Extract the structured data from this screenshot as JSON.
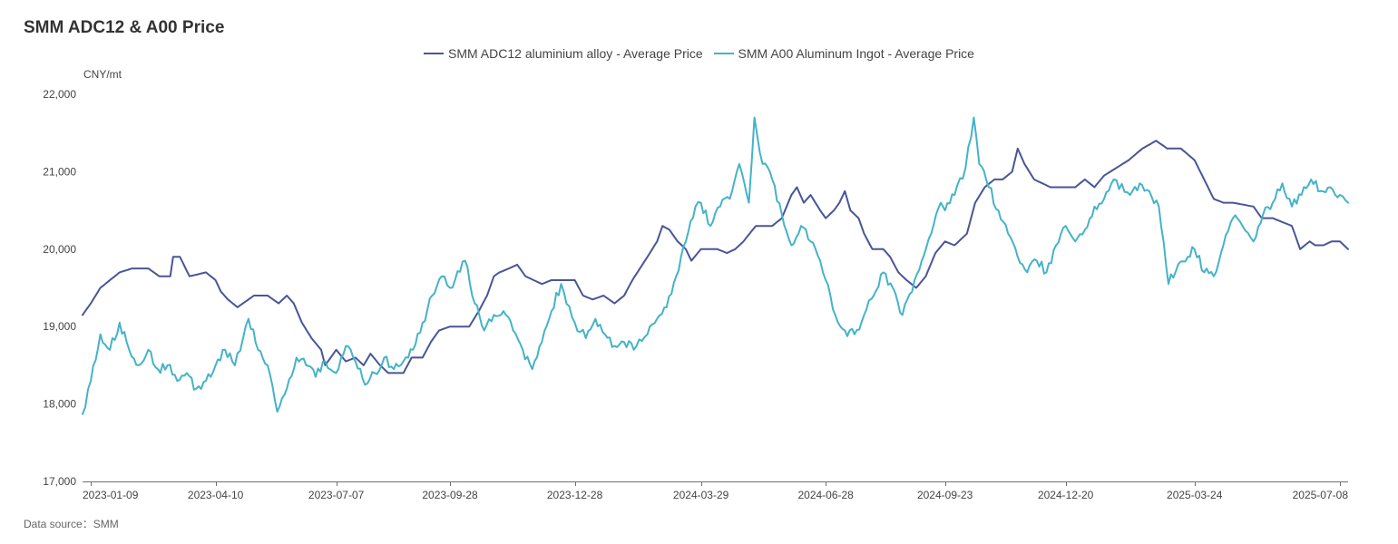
{
  "title": "SMM ADC12 & A00 Price",
  "unit": "CNY/mt",
  "source": "Data source：SMM",
  "chart_data": {
    "type": "line",
    "title": "SMM ADC12 & A00 Price",
    "ylabel": "CNY/mt",
    "ylim": [
      17000,
      22000
    ],
    "yticks": [
      "17,000",
      "18,000",
      "19,000",
      "20,000",
      "21,000",
      "22,000"
    ],
    "ytick_values": [
      17000,
      18000,
      19000,
      20000,
      21000,
      22000
    ],
    "xlim": [
      "2023-01-03",
      "2025-07-14"
    ],
    "xticks": [
      "2023-01-09",
      "2023-04-10",
      "2023-07-07",
      "2023-09-28",
      "2023-12-28",
      "2024-03-29",
      "2024-06-28",
      "2024-09-23",
      "2024-12-20",
      "2025-03-24",
      "2025-07-08"
    ],
    "grid": false,
    "legend": "top-center",
    "series": [
      {
        "name": "SMM ADC12 aluminium alloy - Average Price",
        "color": "#4a5597",
        "points": [
          [
            "2023-01-03",
            19150
          ],
          [
            "2023-01-09",
            19300
          ],
          [
            "2023-01-16",
            19500
          ],
          [
            "2023-01-30",
            19700
          ],
          [
            "2023-02-08",
            19750
          ],
          [
            "2023-02-20",
            19750
          ],
          [
            "2023-02-28",
            19650
          ],
          [
            "2023-03-08",
            19650
          ],
          [
            "2023-03-10",
            19900
          ],
          [
            "2023-03-15",
            19900
          ],
          [
            "2023-03-22",
            19650
          ],
          [
            "2023-04-03",
            19700
          ],
          [
            "2023-04-10",
            19600
          ],
          [
            "2023-04-14",
            19450
          ],
          [
            "2023-04-19",
            19350
          ],
          [
            "2023-04-26",
            19250
          ],
          [
            "2023-05-08",
            19400
          ],
          [
            "2023-05-18",
            19400
          ],
          [
            "2023-05-26",
            19300
          ],
          [
            "2023-06-01",
            19400
          ],
          [
            "2023-06-06",
            19300
          ],
          [
            "2023-06-12",
            19050
          ],
          [
            "2023-06-19",
            18850
          ],
          [
            "2023-06-26",
            18700
          ],
          [
            "2023-06-29",
            18500
          ],
          [
            "2023-07-03",
            18600
          ],
          [
            "2023-07-07",
            18700
          ],
          [
            "2023-07-14",
            18550
          ],
          [
            "2023-07-21",
            18600
          ],
          [
            "2023-07-27",
            18500
          ],
          [
            "2023-08-01",
            18650
          ],
          [
            "2023-08-08",
            18500
          ],
          [
            "2023-08-14",
            18400
          ],
          [
            "2023-08-25",
            18400
          ],
          [
            "2023-08-31",
            18600
          ],
          [
            "2023-09-08",
            18600
          ],
          [
            "2023-09-14",
            18800
          ],
          [
            "2023-09-20",
            18950
          ],
          [
            "2023-09-28",
            19000
          ],
          [
            "2023-10-12",
            19000
          ],
          [
            "2023-10-19",
            19200
          ],
          [
            "2023-10-25",
            19400
          ],
          [
            "2023-10-30",
            19650
          ],
          [
            "2023-11-03",
            19700
          ],
          [
            "2023-11-10",
            19750
          ],
          [
            "2023-11-16",
            19800
          ],
          [
            "2023-11-22",
            19650
          ],
          [
            "2023-11-28",
            19600
          ],
          [
            "2023-12-04",
            19550
          ],
          [
            "2023-12-11",
            19600
          ],
          [
            "2023-12-21",
            19600
          ],
          [
            "2023-12-28",
            19600
          ],
          [
            "2024-01-03",
            19400
          ],
          [
            "2024-01-10",
            19350
          ],
          [
            "2024-01-18",
            19400
          ],
          [
            "2024-01-26",
            19300
          ],
          [
            "2024-02-02",
            19400
          ],
          [
            "2024-02-08",
            19600
          ],
          [
            "2024-02-19",
            19900
          ],
          [
            "2024-02-26",
            20100
          ],
          [
            "2024-03-01",
            20300
          ],
          [
            "2024-03-06",
            20250
          ],
          [
            "2024-03-12",
            20100
          ],
          [
            "2024-03-18",
            20000
          ],
          [
            "2024-03-22",
            19850
          ],
          [
            "2024-03-29",
            20000
          ],
          [
            "2024-04-10",
            20000
          ],
          [
            "2024-04-17",
            19950
          ],
          [
            "2024-04-23",
            20000
          ],
          [
            "2024-04-29",
            20100
          ],
          [
            "2024-05-08",
            20300
          ],
          [
            "2024-05-20",
            20300
          ],
          [
            "2024-05-27",
            20400
          ],
          [
            "2024-06-03",
            20700
          ],
          [
            "2024-06-07",
            20800
          ],
          [
            "2024-06-12",
            20600
          ],
          [
            "2024-06-17",
            20700
          ],
          [
            "2024-06-24",
            20500
          ],
          [
            "2024-06-28",
            20400
          ],
          [
            "2024-07-04",
            20500
          ],
          [
            "2024-07-08",
            20600
          ],
          [
            "2024-07-12",
            20750
          ],
          [
            "2024-07-16",
            20500
          ],
          [
            "2024-07-22",
            20400
          ],
          [
            "2024-07-26",
            20200
          ],
          [
            "2024-08-01",
            20000
          ],
          [
            "2024-08-09",
            20000
          ],
          [
            "2024-08-14",
            19900
          ],
          [
            "2024-08-20",
            19700
          ],
          [
            "2024-08-26",
            19600
          ],
          [
            "2024-09-02",
            19500
          ],
          [
            "2024-09-09",
            19650
          ],
          [
            "2024-09-16",
            19950
          ],
          [
            "2024-09-23",
            20100
          ],
          [
            "2024-09-30",
            20050
          ],
          [
            "2024-10-09",
            20200
          ],
          [
            "2024-10-15",
            20600
          ],
          [
            "2024-10-22",
            20800
          ],
          [
            "2024-10-29",
            20900
          ],
          [
            "2024-11-04",
            20900
          ],
          [
            "2024-11-11",
            21000
          ],
          [
            "2024-11-15",
            21300
          ],
          [
            "2024-11-20",
            21100
          ],
          [
            "2024-11-27",
            20900
          ],
          [
            "2024-12-09",
            20800
          ],
          [
            "2024-12-16",
            20800
          ],
          [
            "2024-12-20",
            20800
          ],
          [
            "2024-12-27",
            20800
          ],
          [
            "2025-01-03",
            20900
          ],
          [
            "2025-01-10",
            20800
          ],
          [
            "2025-01-17",
            20950
          ],
          [
            "2025-02-04",
            21150
          ],
          [
            "2025-02-14",
            21300
          ],
          [
            "2025-02-24",
            21400
          ],
          [
            "2025-03-04",
            21300
          ],
          [
            "2025-03-14",
            21300
          ],
          [
            "2025-03-24",
            21150
          ],
          [
            "2025-03-31",
            20900
          ],
          [
            "2025-04-07",
            20650
          ],
          [
            "2025-04-14",
            20600
          ],
          [
            "2025-04-21",
            20600
          ],
          [
            "2025-05-06",
            20550
          ],
          [
            "2025-05-12",
            20400
          ],
          [
            "2025-05-20",
            20400
          ],
          [
            "2025-05-27",
            20350
          ],
          [
            "2025-06-03",
            20300
          ],
          [
            "2025-06-09",
            20000
          ],
          [
            "2025-06-16",
            20100
          ],
          [
            "2025-06-20",
            20050
          ],
          [
            "2025-06-26",
            20050
          ],
          [
            "2025-07-02",
            20100
          ],
          [
            "2025-07-08",
            20100
          ],
          [
            "2025-07-14",
            20000
          ]
        ]
      },
      {
        "name": "SMM A00 Aluminum Ingot - Average Price",
        "color": "#45b3c6",
        "points": [
          [
            "2023-01-03",
            17870
          ],
          [
            "2023-01-09",
            18300
          ],
          [
            "2023-01-16",
            18900
          ],
          [
            "2023-01-23",
            18700
          ],
          [
            "2023-01-30",
            19050
          ],
          [
            "2023-02-06",
            18700
          ],
          [
            "2023-02-13",
            18500
          ],
          [
            "2023-02-20",
            18700
          ],
          [
            "2023-02-27",
            18450
          ],
          [
            "2023-03-06",
            18500
          ],
          [
            "2023-03-13",
            18300
          ],
          [
            "2023-03-20",
            18400
          ],
          [
            "2023-03-27",
            18200
          ],
          [
            "2023-04-03",
            18300
          ],
          [
            "2023-04-10",
            18500
          ],
          [
            "2023-04-17",
            18700
          ],
          [
            "2023-04-24",
            18500
          ],
          [
            "2023-05-04",
            19100
          ],
          [
            "2023-05-11",
            18700
          ],
          [
            "2023-05-18",
            18500
          ],
          [
            "2023-05-25",
            17900
          ],
          [
            "2023-06-01",
            18200
          ],
          [
            "2023-06-08",
            18600
          ],
          [
            "2023-06-15",
            18500
          ],
          [
            "2023-06-22",
            18350
          ],
          [
            "2023-06-29",
            18550
          ],
          [
            "2023-07-07",
            18400
          ],
          [
            "2023-07-14",
            18750
          ],
          [
            "2023-07-21",
            18550
          ],
          [
            "2023-07-28",
            18250
          ],
          [
            "2023-08-04",
            18400
          ],
          [
            "2023-08-11",
            18600
          ],
          [
            "2023-08-18",
            18450
          ],
          [
            "2023-08-25",
            18550
          ],
          [
            "2023-09-01",
            18700
          ],
          [
            "2023-09-08",
            19050
          ],
          [
            "2023-09-15",
            19400
          ],
          [
            "2023-09-22",
            19650
          ],
          [
            "2023-09-28",
            19500
          ],
          [
            "2023-10-09",
            19850
          ],
          [
            "2023-10-16",
            19300
          ],
          [
            "2023-10-23",
            18950
          ],
          [
            "2023-10-30",
            19150
          ],
          [
            "2023-11-06",
            19200
          ],
          [
            "2023-11-13",
            18950
          ],
          [
            "2023-11-20",
            18700
          ],
          [
            "2023-11-27",
            18450
          ],
          [
            "2023-12-04",
            18800
          ],
          [
            "2023-12-11",
            19200
          ],
          [
            "2023-12-18",
            19550
          ],
          [
            "2023-12-28",
            19050
          ],
          [
            "2024-01-05",
            18850
          ],
          [
            "2024-01-12",
            19100
          ],
          [
            "2024-01-19",
            18900
          ],
          [
            "2024-01-26",
            18750
          ],
          [
            "2024-02-02",
            18800
          ],
          [
            "2024-02-09",
            18700
          ],
          [
            "2024-02-19",
            18900
          ],
          [
            "2024-02-26",
            19100
          ],
          [
            "2024-03-04",
            19250
          ],
          [
            "2024-03-11",
            19650
          ],
          [
            "2024-03-18",
            20100
          ],
          [
            "2024-03-25",
            20550
          ],
          [
            "2024-03-29",
            20600
          ],
          [
            "2024-04-05",
            20300
          ],
          [
            "2024-04-12",
            20550
          ],
          [
            "2024-04-19",
            20650
          ],
          [
            "2024-04-26",
            21100
          ],
          [
            "2024-05-03",
            20600
          ],
          [
            "2024-05-07",
            21700
          ],
          [
            "2024-05-13",
            21100
          ],
          [
            "2024-05-20",
            20900
          ],
          [
            "2024-05-27",
            20450
          ],
          [
            "2024-06-03",
            20050
          ],
          [
            "2024-06-10",
            20300
          ],
          [
            "2024-06-17",
            20100
          ],
          [
            "2024-06-24",
            19850
          ],
          [
            "2024-06-28",
            19600
          ],
          [
            "2024-07-05",
            19150
          ],
          [
            "2024-07-12",
            18950
          ],
          [
            "2024-07-19",
            18900
          ],
          [
            "2024-07-26",
            19150
          ],
          [
            "2024-08-02",
            19400
          ],
          [
            "2024-08-09",
            19700
          ],
          [
            "2024-08-16",
            19500
          ],
          [
            "2024-08-23",
            19150
          ],
          [
            "2024-08-30",
            19450
          ],
          [
            "2024-09-06",
            19850
          ],
          [
            "2024-09-13",
            20200
          ],
          [
            "2024-09-20",
            20600
          ],
          [
            "2024-09-23",
            20500
          ],
          [
            "2024-09-30",
            20700
          ],
          [
            "2024-10-08",
            21050
          ],
          [
            "2024-10-14",
            21700
          ],
          [
            "2024-10-18",
            21100
          ],
          [
            "2024-10-25",
            20800
          ],
          [
            "2024-11-01",
            20500
          ],
          [
            "2024-11-08",
            20200
          ],
          [
            "2024-11-15",
            19900
          ],
          [
            "2024-11-22",
            19700
          ],
          [
            "2024-11-29",
            19850
          ],
          [
            "2024-12-06",
            19700
          ],
          [
            "2024-12-13",
            20050
          ],
          [
            "2024-12-20",
            20300
          ],
          [
            "2024-12-27",
            20100
          ],
          [
            "2025-01-03",
            20250
          ],
          [
            "2025-01-10",
            20550
          ],
          [
            "2025-01-17",
            20650
          ],
          [
            "2025-01-24",
            20900
          ],
          [
            "2025-02-05",
            20700
          ],
          [
            "2025-02-12",
            20850
          ],
          [
            "2025-02-19",
            20750
          ],
          [
            "2025-02-26",
            20550
          ],
          [
            "2025-03-05",
            19550
          ],
          [
            "2025-03-12",
            19800
          ],
          [
            "2025-03-19",
            19900
          ],
          [
            "2025-03-24",
            20000
          ],
          [
            "2025-03-31",
            19700
          ],
          [
            "2025-04-07",
            19650
          ],
          [
            "2025-04-14",
            20050
          ],
          [
            "2025-04-21",
            20400
          ],
          [
            "2025-04-28",
            20300
          ],
          [
            "2025-05-06",
            20100
          ],
          [
            "2025-05-13",
            20450
          ],
          [
            "2025-05-20",
            20600
          ],
          [
            "2025-05-27",
            20850
          ],
          [
            "2025-06-03",
            20550
          ],
          [
            "2025-06-10",
            20700
          ],
          [
            "2025-06-17",
            20900
          ],
          [
            "2025-06-24",
            20750
          ],
          [
            "2025-07-01",
            20800
          ],
          [
            "2025-07-08",
            20700
          ],
          [
            "2025-07-14",
            20600
          ]
        ]
      }
    ]
  }
}
